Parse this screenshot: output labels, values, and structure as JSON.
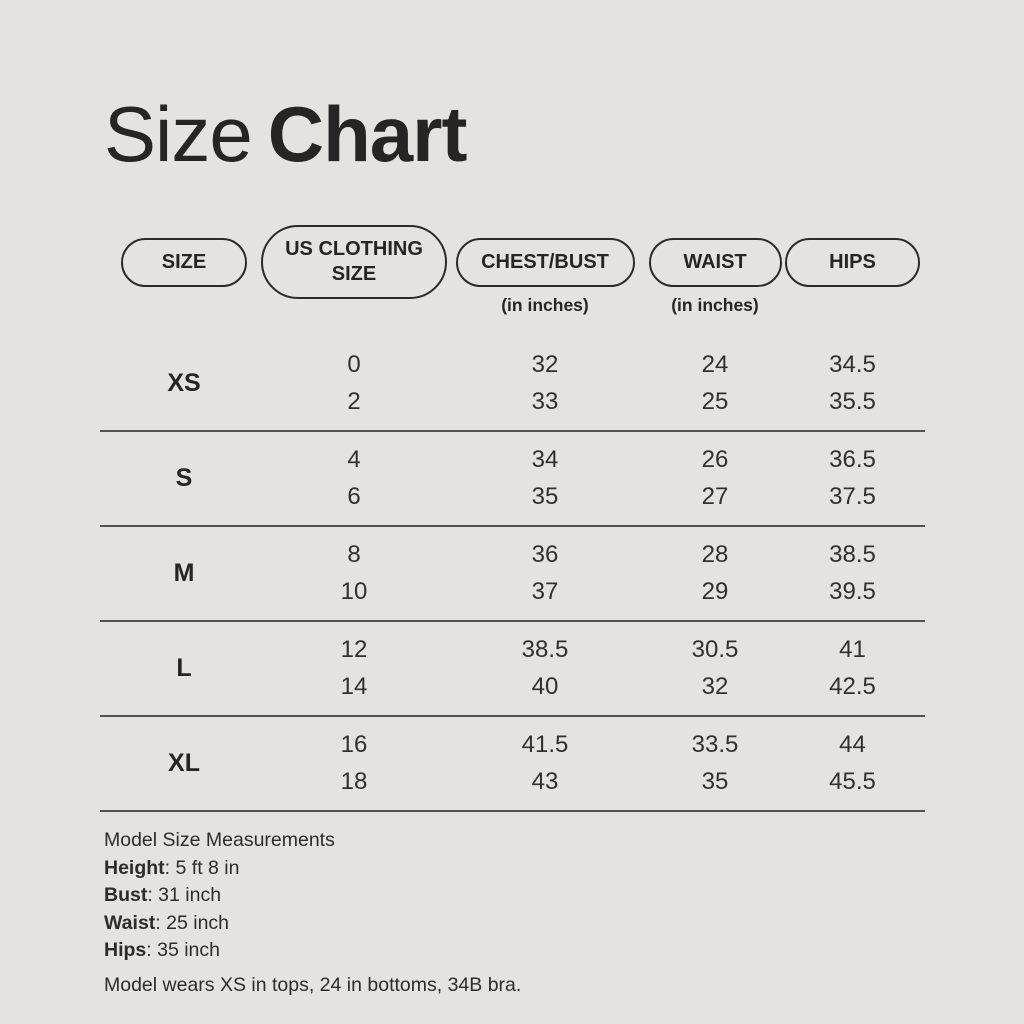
{
  "colors": {
    "background": "#e5e3df",
    "ink": "#262523",
    "value_text": "#32302d",
    "divider": "#56534f"
  },
  "title": {
    "regular": "Size",
    "bold": "Chart"
  },
  "table": {
    "headers": [
      {
        "label": "SIZE",
        "sublabel": ""
      },
      {
        "label": "US CLOTHING SIZE",
        "sublabel": ""
      },
      {
        "label": "CHEST/BUST",
        "sublabel": "(in inches)"
      },
      {
        "label": "WAIST",
        "sublabel": "(in inches)"
      },
      {
        "label": "HIPS",
        "sublabel": ""
      }
    ],
    "rows": [
      {
        "size": "XS",
        "values": [
          [
            "0",
            "2"
          ],
          [
            "32",
            "33"
          ],
          [
            "24",
            "25"
          ],
          [
            "34.5",
            "35.5"
          ]
        ]
      },
      {
        "size": "S",
        "values": [
          [
            "4",
            "6"
          ],
          [
            "34",
            "35"
          ],
          [
            "26",
            "27"
          ],
          [
            "36.5",
            "37.5"
          ]
        ]
      },
      {
        "size": "M",
        "values": [
          [
            "8",
            "10"
          ],
          [
            "36",
            "37"
          ],
          [
            "28",
            "29"
          ],
          [
            "38.5",
            "39.5"
          ]
        ]
      },
      {
        "size": "L",
        "values": [
          [
            "12",
            "14"
          ],
          [
            "38.5",
            "40"
          ],
          [
            "30.5",
            "32"
          ],
          [
            "41",
            "42.5"
          ]
        ]
      },
      {
        "size": "XL",
        "values": [
          [
            "16",
            "18"
          ],
          [
            "41.5",
            "43"
          ],
          [
            "33.5",
            "35"
          ],
          [
            "44",
            "45.5"
          ]
        ]
      }
    ]
  },
  "footer": {
    "heading": "Model Size Measurements",
    "measurements": [
      {
        "label": "Height",
        "value": ": 5 ft 8 in"
      },
      {
        "label": "Bust",
        "value": ": 31 inch"
      },
      {
        "label": "Waist",
        "value": ": 25 inch"
      },
      {
        "label": "Hips",
        "value": ": 35 inch"
      }
    ],
    "note": "Model wears XS in tops, 24 in bottoms, 34B bra."
  }
}
